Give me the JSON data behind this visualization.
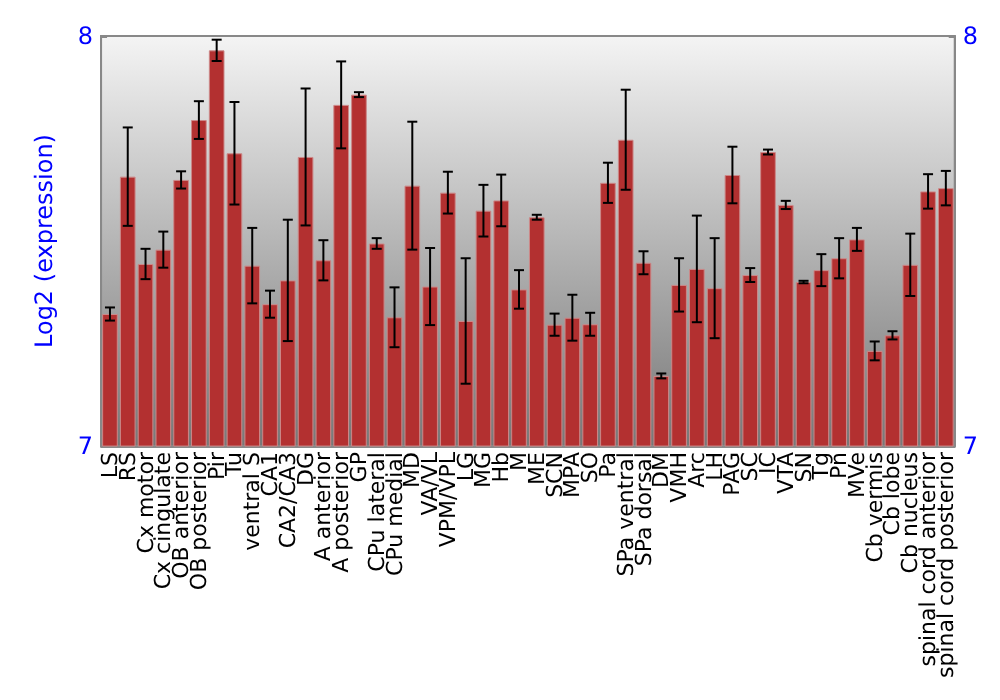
{
  "chart_data": {
    "type": "bar",
    "ylabel": "Log2 (expression)",
    "categories": [
      "LS",
      "RS",
      "Cx motor",
      "Cx cingulate",
      "OB anterior",
      "OB posterior",
      "Pir",
      "Tu",
      "ventral S",
      "CA1",
      "CA2/CA3",
      "DG",
      "A anterior",
      "A posterior",
      "GP",
      "CPu lateral",
      "CPu medial",
      "MD",
      "VA/VL",
      "VPM/VPL",
      "LG",
      "MG",
      "Hb",
      "M",
      "ME",
      "SCN",
      "MPA",
      "SO",
      "Pa",
      "SPa ventral",
      "SPa dorsal",
      "DM",
      "VMH",
      "Arc",
      "LH",
      "PAG",
      "SC",
      "IC",
      "VTA",
      "SN",
      "Tg",
      "Pn",
      "MVe",
      "Cb vermis",
      "Cb lobe",
      "Cb nucleus",
      "spinal cord anterior",
      "spinal cord posterior"
    ],
    "series": [
      {
        "color": "#b33030",
        "values": [
          7.322,
          7.657,
          7.444,
          7.479,
          7.649,
          7.795,
          7.965,
          7.714,
          7.44,
          7.346,
          7.404,
          7.705,
          7.453,
          7.832,
          7.857,
          7.494,
          7.314,
          7.635,
          7.389,
          7.618,
          7.305,
          7.574,
          7.599,
          7.382,
          7.558,
          7.296,
          7.313,
          7.297,
          7.642,
          7.747,
          7.447,
          7.171,
          7.393,
          7.432,
          7.385,
          7.661,
          7.417,
          7.717,
          7.588,
          7.4,
          7.429,
          7.458,
          7.504,
          7.232,
          7.27,
          7.442,
          7.621,
          7.629
        ],
        "errors": [
          0.016,
          0.12,
          0.037,
          0.044,
          0.021,
          0.046,
          0.026,
          0.125,
          0.092,
          0.033,
          0.148,
          0.167,
          0.049,
          0.106,
          0.006,
          0.013,
          0.073,
          0.156,
          0.094,
          0.051,
          0.153,
          0.063,
          0.063,
          0.047,
          0.006,
          0.027,
          0.056,
          0.028,
          0.049,
          0.122,
          0.028,
          0.006,
          0.065,
          0.13,
          0.122,
          0.069,
          0.017,
          0.006,
          0.01,
          0.003,
          0.039,
          0.049,
          0.028,
          0.023,
          0.01,
          0.076,
          0.042,
          0.042
        ]
      }
    ],
    "ylim": [
      7,
      8
    ],
    "yticks": [
      7,
      8
    ],
    "y2lim": [
      7,
      8
    ],
    "y2ticks": [
      7,
      8
    ],
    "grid": false
  }
}
